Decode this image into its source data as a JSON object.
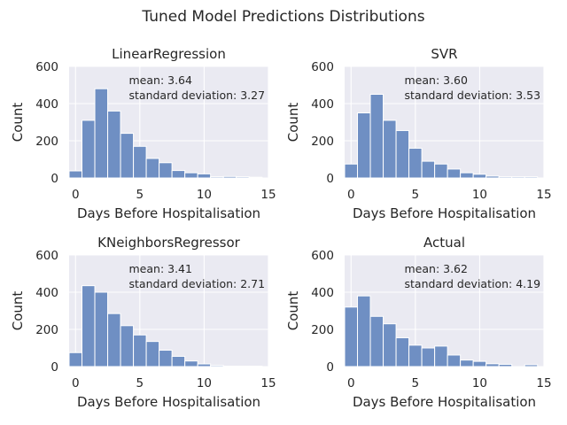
{
  "figure": {
    "title": "Tuned Model Predictions Distributions"
  },
  "chart_data": [
    {
      "type": "bar",
      "title": "LinearRegression",
      "xlabel": "Days Before Hospitalisation",
      "ylabel": "Count",
      "xlim": [
        -0.5,
        15
      ],
      "ylim": [
        0,
        600
      ],
      "xticks": [
        "0",
        "5",
        "10",
        "15"
      ],
      "yticks": [
        "0",
        "200",
        "400",
        "600"
      ],
      "bin_edges": [
        -0.5,
        0.5,
        1.5,
        2.5,
        3.5,
        4.5,
        5.5,
        6.5,
        7.5,
        8.5,
        9.5,
        10.5,
        11.5,
        12.5,
        13.5,
        14.5
      ],
      "values": [
        38,
        310,
        480,
        360,
        240,
        170,
        105,
        82,
        40,
        28,
        22,
        6,
        8,
        6,
        4
      ],
      "annotation": {
        "mean": "mean: 3.64",
        "std": "standard deviation: 3.27"
      }
    },
    {
      "type": "bar",
      "title": "SVR",
      "xlabel": "Days Before Hospitalisation",
      "ylabel": "Count",
      "xlim": [
        -0.5,
        15
      ],
      "ylim": [
        0,
        600
      ],
      "xticks": [
        "0",
        "5",
        "10",
        "15"
      ],
      "yticks": [
        "0",
        "200",
        "400",
        "600"
      ],
      "bin_edges": [
        -0.5,
        0.5,
        1.5,
        2.5,
        3.5,
        4.5,
        5.5,
        6.5,
        7.5,
        8.5,
        9.5,
        10.5,
        11.5,
        12.5,
        13.5,
        14.5
      ],
      "values": [
        75,
        350,
        450,
        310,
        255,
        160,
        90,
        75,
        48,
        28,
        20,
        10,
        6,
        6,
        6
      ],
      "annotation": {
        "mean": "mean: 3.60",
        "std": "standard deviation: 3.53"
      }
    },
    {
      "type": "bar",
      "title": "KNeighborsRegressor",
      "xlabel": "Days Before Hospitalisation",
      "ylabel": "Count",
      "xlim": [
        -0.5,
        15
      ],
      "ylim": [
        0,
        600
      ],
      "xticks": [
        "0",
        "5",
        "10",
        "15"
      ],
      "yticks": [
        "0",
        "200",
        "400",
        "600"
      ],
      "bin_edges": [
        -0.5,
        0.5,
        1.5,
        2.5,
        3.5,
        4.5,
        5.5,
        6.5,
        7.5,
        8.5,
        9.5,
        10.5,
        11.5,
        12.5,
        13.5,
        14.5
      ],
      "values": [
        75,
        435,
        400,
        285,
        220,
        170,
        135,
        88,
        55,
        30,
        14,
        6,
        2,
        2,
        2
      ],
      "annotation": {
        "mean": "mean: 3.41",
        "std": "standard deviation: 2.71"
      }
    },
    {
      "type": "bar",
      "title": "Actual",
      "xlabel": "Days Before Hospitalisation",
      "ylabel": "Count",
      "xlim": [
        -0.5,
        15
      ],
      "ylim": [
        0,
        600
      ],
      "xticks": [
        "0",
        "5",
        "10",
        "15"
      ],
      "yticks": [
        "0",
        "200",
        "400",
        "600"
      ],
      "bin_edges": [
        -0.5,
        0.5,
        1.5,
        2.5,
        3.5,
        4.5,
        5.5,
        6.5,
        7.5,
        8.5,
        9.5,
        10.5,
        11.5,
        12.5,
        13.5,
        14.5
      ],
      "values": [
        320,
        380,
        270,
        230,
        155,
        115,
        100,
        110,
        62,
        35,
        28,
        15,
        12,
        0,
        10
      ],
      "annotation": {
        "mean": "mean: 3.62",
        "std": "standard deviation: 4.19"
      }
    }
  ],
  "colors": {
    "bar": "#6f8fc3",
    "background": "#eaeaf2",
    "grid": "#ffffff",
    "text": "#262626"
  }
}
